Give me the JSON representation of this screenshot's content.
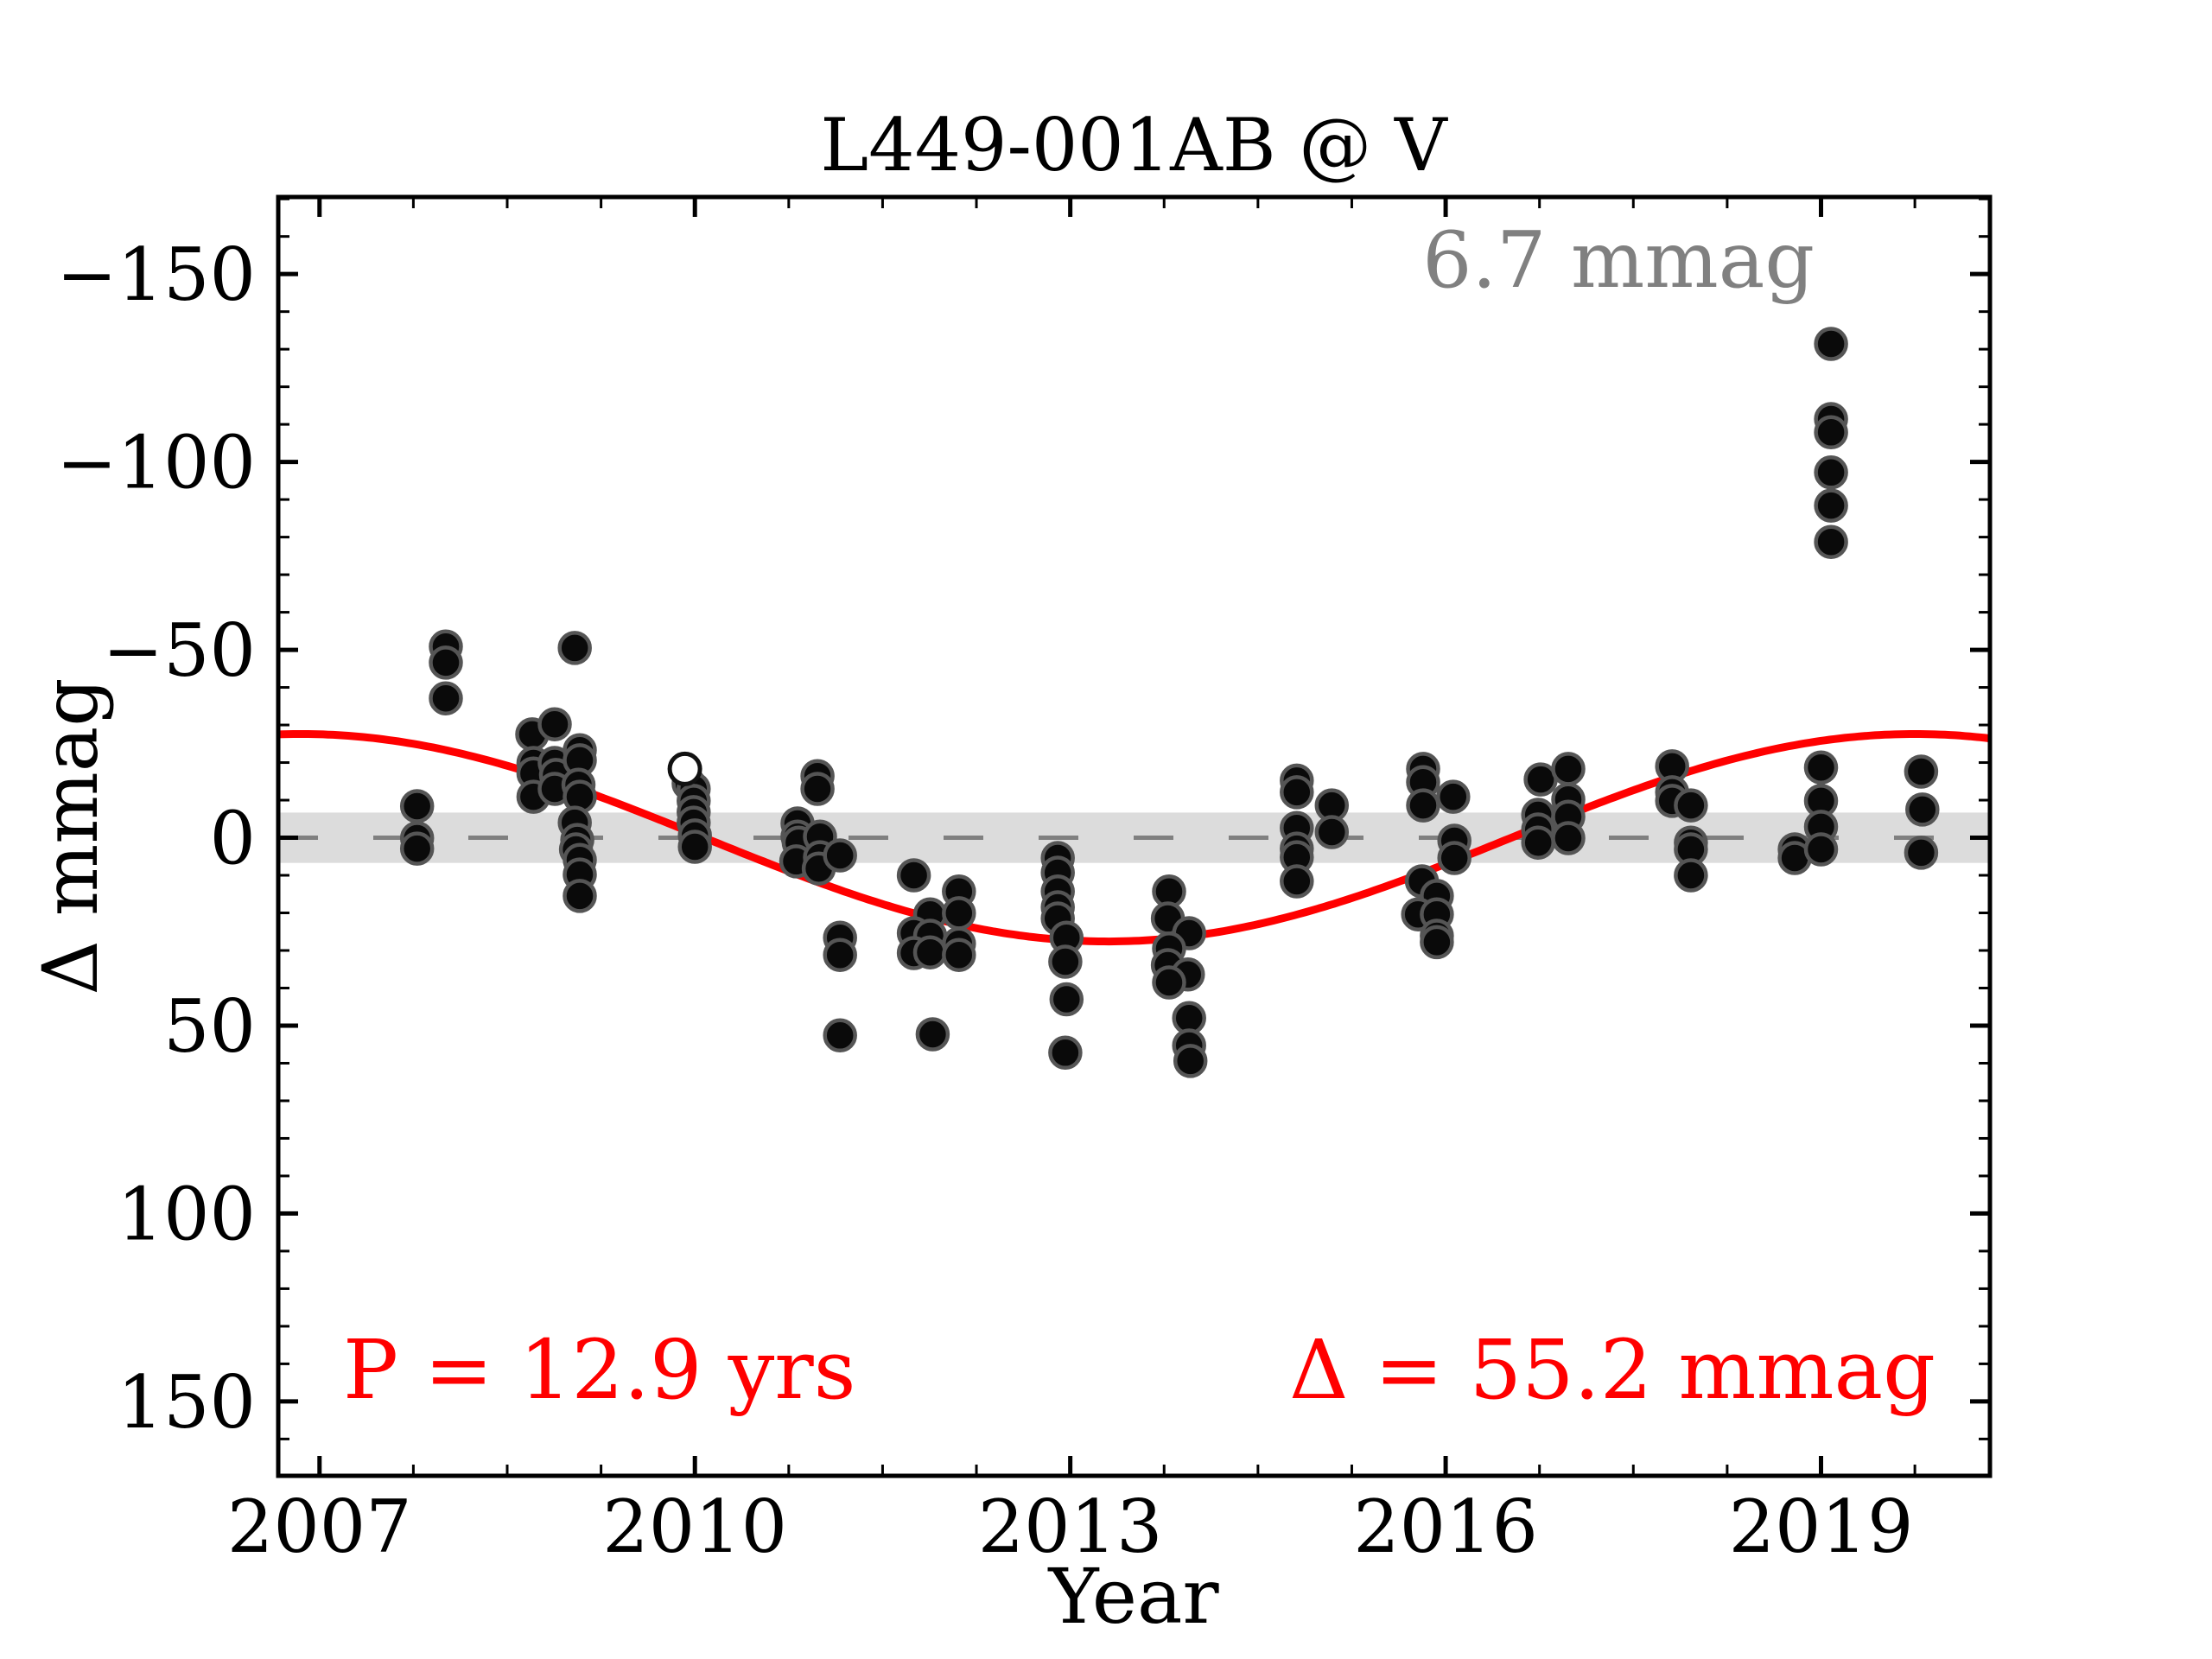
{
  "chart_data": {
    "type": "scatter",
    "title": "L449-001AB @ V",
    "xlabel": "Year",
    "ylabel": "Δ  mmag",
    "xlim": [
      2006.67,
      2020.35
    ],
    "ylim": [
      -170.5,
      169.8
    ],
    "y_axis_inverted": true,
    "grid": false,
    "x_major_ticks": [
      2007,
      2010,
      2013,
      2016,
      2019
    ],
    "x_tick_labels": [
      "2007",
      "2010",
      "2013",
      "2016",
      "2019"
    ],
    "x_minor_step": 0.75,
    "y_major_ticks": [
      -150,
      -100,
      -50,
      0,
      50,
      100,
      150
    ],
    "y_tick_labels": [
      "−150",
      "−100",
      "−50",
      "0",
      "50",
      "100",
      "150"
    ],
    "y_minor_step": 10,
    "colors": {
      "curve": "#ff0000",
      "annotation_red": "#ff0000",
      "annotation_gray": "#808080",
      "zero_line": "#808080",
      "band": "#dcdcdc",
      "marker_fill": "#0a0a0a",
      "marker_edge": "#555555",
      "axes": "#000000"
    },
    "annotations": {
      "rms_label": "6.7 mmag",
      "period_label": "P = 12.9 yrs",
      "amplitude_label": "Δ = 55.2 mmag"
    },
    "zero_line": {
      "y": 0,
      "style": "dashed"
    },
    "band": {
      "center": 0,
      "half_width_mmag": 6.7
    },
    "fit_curve": {
      "shape": "cosine",
      "semi_amplitude_mmag": 27.6,
      "period_yr": 12.9,
      "max_epoch_yr": 2019.75
    },
    "series": [
      {
        "name": "photometry-filled",
        "marker": "filled-circle",
        "points": [
          [
            2007.78,
            -8.4
          ],
          [
            2007.78,
            0.1
          ],
          [
            2007.78,
            2.9
          ],
          [
            2008.01,
            -50.9
          ],
          [
            2008.01,
            -46.6
          ],
          [
            2008.01,
            -37.1
          ],
          [
            2008.7,
            -27.5
          ],
          [
            2008.71,
            -19.9
          ],
          [
            2008.71,
            -17.1
          ],
          [
            2008.71,
            -10.9
          ],
          [
            2008.88,
            -30.2
          ],
          [
            2008.88,
            -19.9
          ],
          [
            2008.89,
            -16.7
          ],
          [
            2008.88,
            -13.0
          ],
          [
            2009.04,
            -50.5
          ],
          [
            2009.08,
            -23.3
          ],
          [
            2009.08,
            -20.6
          ],
          [
            2009.07,
            -14.1
          ],
          [
            2009.08,
            -10.9
          ],
          [
            2009.04,
            -4.0
          ],
          [
            2009.06,
            0.6
          ],
          [
            2009.05,
            3.1
          ],
          [
            2009.08,
            5.9
          ],
          [
            2009.08,
            9.8
          ],
          [
            2009.08,
            15.5
          ],
          [
            2009.95,
            -14.4
          ],
          [
            2009.99,
            -13.0
          ],
          [
            2009.99,
            -9.8
          ],
          [
            2009.99,
            -6.8
          ],
          [
            2009.99,
            -4.0
          ],
          [
            2010.0,
            -0.6
          ],
          [
            2010.0,
            2.4
          ],
          [
            2010.98,
            -16.4
          ],
          [
            2010.98,
            -13.0
          ],
          [
            2010.82,
            -3.8
          ],
          [
            2010.82,
            -0.3
          ],
          [
            2010.83,
            1.3
          ],
          [
            2011.0,
            -0.3
          ],
          [
            2010.81,
            6.3
          ],
          [
            2011.0,
            5.2
          ],
          [
            2010.99,
            8.2
          ],
          [
            2011.16,
            4.7
          ],
          [
            2011.16,
            26.6
          ],
          [
            2011.16,
            31.2
          ],
          [
            2011.16,
            52.6
          ],
          [
            2011.75,
            10.0
          ],
          [
            2011.88,
            20.4
          ],
          [
            2011.75,
            25.4
          ],
          [
            2011.88,
            26.1
          ],
          [
            2011.75,
            30.7
          ],
          [
            2011.88,
            30.5
          ],
          [
            2011.9,
            52.3
          ],
          [
            2012.11,
            14.3
          ],
          [
            2012.11,
            20.1
          ],
          [
            2012.11,
            28.2
          ],
          [
            2012.11,
            31.2
          ],
          [
            2012.9,
            5.4
          ],
          [
            2012.9,
            9.3
          ],
          [
            2012.9,
            14.3
          ],
          [
            2012.9,
            18.5
          ],
          [
            2012.9,
            21.5
          ],
          [
            2012.97,
            26.6
          ],
          [
            2012.96,
            33.0
          ],
          [
            2012.97,
            43.0
          ],
          [
            2012.96,
            57.2
          ],
          [
            2013.79,
            14.3
          ],
          [
            2013.78,
            21.5
          ],
          [
            2013.95,
            25.4
          ],
          [
            2013.79,
            29.5
          ],
          [
            2013.78,
            33.9
          ],
          [
            2013.94,
            36.4
          ],
          [
            2013.79,
            38.5
          ],
          [
            2013.95,
            48.0
          ],
          [
            2013.95,
            55.3
          ],
          [
            2013.96,
            59.4
          ],
          [
            2014.81,
            -15.2
          ],
          [
            2014.81,
            -12.1
          ],
          [
            2015.09,
            -8.6
          ],
          [
            2014.81,
            -2.6
          ],
          [
            2015.09,
            -1.5
          ],
          [
            2014.81,
            2.9
          ],
          [
            2014.81,
            5.2
          ],
          [
            2014.81,
            11.6
          ],
          [
            2015.82,
            -18.3
          ],
          [
            2015.82,
            -14.8
          ],
          [
            2015.82,
            -8.6
          ],
          [
            2016.06,
            -10.9
          ],
          [
            2016.07,
            0.8
          ],
          [
            2016.07,
            5.4
          ],
          [
            2015.81,
            11.6
          ],
          [
            2015.93,
            15.5
          ],
          [
            2015.78,
            20.4
          ],
          [
            2015.93,
            20.4
          ],
          [
            2015.93,
            26.1
          ],
          [
            2015.93,
            27.8
          ],
          [
            2016.76,
            -15.5
          ],
          [
            2016.98,
            -18.3
          ],
          [
            2016.98,
            -10.2
          ],
          [
            2016.74,
            -6.1
          ],
          [
            2016.98,
            -5.6
          ],
          [
            2016.74,
            -2.2
          ],
          [
            2016.74,
            1.3
          ],
          [
            2016.98,
            0.1
          ],
          [
            2017.81,
            -19.0
          ],
          [
            2017.81,
            -12.1
          ],
          [
            2017.81,
            -9.8
          ],
          [
            2017.96,
            -8.6
          ],
          [
            2017.96,
            1.3
          ],
          [
            2017.96,
            3.1
          ],
          [
            2017.96,
            10.0
          ],
          [
            2018.79,
            3.1
          ],
          [
            2018.79,
            5.4
          ],
          [
            2019.0,
            -18.7
          ],
          [
            2019.0,
            -9.8
          ],
          [
            2019.0,
            -2.9
          ],
          [
            2019.0,
            3.1
          ],
          [
            2019.08,
            -131.4
          ],
          [
            2019.08,
            -111.4
          ],
          [
            2019.08,
            -107.9
          ],
          [
            2019.08,
            -97.2
          ],
          [
            2019.08,
            -88.4
          ],
          [
            2019.08,
            -78.7
          ],
          [
            2019.8,
            -17.6
          ],
          [
            2019.81,
            -7.5
          ],
          [
            2019.8,
            4.0
          ]
        ]
      },
      {
        "name": "photometry-open",
        "marker": "open-circle",
        "points": [
          [
            2009.92,
            -18.3
          ]
        ]
      }
    ]
  }
}
